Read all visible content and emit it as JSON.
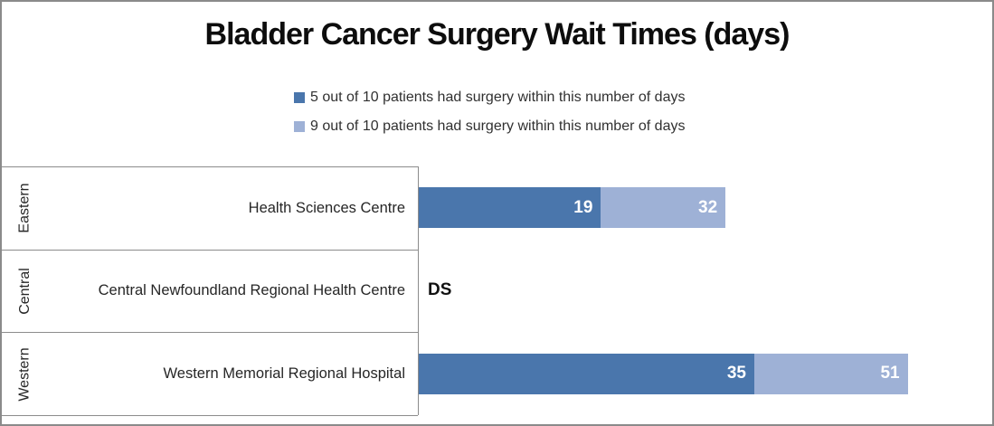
{
  "title": "Bladder Cancer Surgery Wait Times (days)",
  "colors": {
    "series_5of10": "#4a76ac",
    "series_9of10": "#9eb1d6",
    "border_gray": "#8c8c8c",
    "value_label": "#ffffff"
  },
  "legend": {
    "items": [
      {
        "label": "5 out of 10 patients had surgery within this number of days",
        "color": "#4a76ac"
      },
      {
        "label": "9 out of 10 patients had surgery within this number of days",
        "color": "#9eb1d6"
      }
    ]
  },
  "rows": [
    {
      "region": "Eastern",
      "hospital": "Health Sciences Centre",
      "v5": 19,
      "v9": 32
    },
    {
      "region": "Central",
      "hospital": "Central Newfoundland Regional Health Centre",
      "suppressed": "DS"
    },
    {
      "region": "Western",
      "hospital": "Western Memorial Regional Hospital",
      "v5": 35,
      "v9": 51
    }
  ],
  "chart_data": {
    "type": "bar",
    "orientation": "horizontal",
    "title": "Bladder Cancer Surgery Wait Times (days)",
    "categories": [
      "Health Sciences Centre",
      "Central Newfoundland Regional Health Centre",
      "Western Memorial Regional Hospital"
    ],
    "category_groups": [
      "Eastern",
      "Central",
      "Western"
    ],
    "series": [
      {
        "name": "5 out of 10 patients had surgery within this number of days",
        "color": "#4a76ac",
        "values": [
          19,
          null,
          35
        ]
      },
      {
        "name": "9 out of 10 patients had surgery within this number of days",
        "color": "#9eb1d6",
        "values": [
          32,
          null,
          51
        ]
      }
    ],
    "values_are_cumulative": true,
    "annotations": [
      {
        "category_index": 1,
        "text": "DS",
        "meaning_visible_text_only": "DS"
      }
    ],
    "xlim": [
      0,
      60
    ],
    "grid": false,
    "legend_position": "top",
    "axis_line": "left-vertical"
  }
}
